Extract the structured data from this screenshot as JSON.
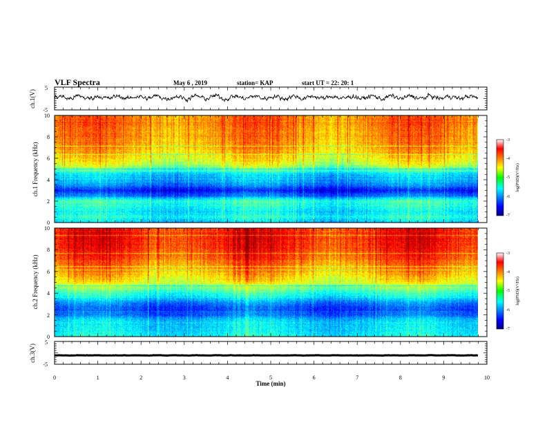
{
  "header": {
    "title": "VLF Spectra",
    "date": "May 6 , 2019",
    "station": "station= KAP",
    "start": "start UT = 22: 20: 1"
  },
  "chart_data": [
    {
      "type": "line",
      "panel": "ch1-waveform",
      "ylabel": "ch.1(V)",
      "ylim": [
        -5,
        5
      ],
      "yticks": [
        "5",
        "-5"
      ],
      "xlim": [
        0,
        10
      ],
      "series": [
        {
          "stroke": "#000000",
          "mean": 0.5,
          "amplitude": 2.2
        }
      ]
    },
    {
      "type": "heatmap",
      "panel": "ch1-spectrogram",
      "ylabel": "ch.1 Frequency (kHz)",
      "ylim": [
        0,
        10
      ],
      "yticks": [
        "0",
        "2",
        "4",
        "6",
        "8",
        "10"
      ],
      "xlim": [
        0,
        9.8
      ],
      "profile_khz": [
        0,
        0.5,
        1,
        1.5,
        2,
        2.5,
        3,
        3.5,
        4,
        4.5,
        5,
        5.5,
        6,
        7,
        8,
        9,
        10
      ],
      "profile_log_psd": [
        -5.7,
        -5.4,
        -5.6,
        -5.4,
        -5.3,
        -6.1,
        -6.5,
        -6.0,
        -5.8,
        -5.7,
        -5.1,
        -4.7,
        -4.5,
        -4.2,
        -4.1,
        -4.0,
        -4.0
      ],
      "colorbar": {
        "label": "log(PSD)(V²/Hz)",
        "range": [
          -7,
          -3
        ],
        "ticks": [
          "-3",
          "-4",
          "-5",
          "-6",
          "-7"
        ]
      }
    },
    {
      "type": "heatmap",
      "panel": "ch2-spectrogram",
      "ylabel": "ch.2 Frequency (kHz)",
      "ylim": [
        0,
        10
      ],
      "yticks": [
        "0",
        "2",
        "4",
        "6",
        "8",
        "10"
      ],
      "xlim": [
        0,
        9.8
      ],
      "profile_khz": [
        0,
        0.5,
        1,
        1.5,
        2,
        2.5,
        3,
        3.5,
        4,
        4.5,
        5,
        5.5,
        6,
        7,
        8,
        9,
        10
      ],
      "profile_log_psd": [
        -5.5,
        -5.6,
        -5.6,
        -5.7,
        -6.1,
        -6.2,
        -6.1,
        -5.6,
        -5.3,
        -5.0,
        -4.6,
        -4.4,
        -4.2,
        -3.9,
        -3.7,
        -3.6,
        -3.6
      ],
      "colorbar": {
        "label": "log(PSD)(V²/Hz)",
        "range": [
          -7,
          -3
        ],
        "ticks": [
          "-3",
          "-4",
          "-5",
          "-6",
          "-7"
        ]
      }
    },
    {
      "type": "line",
      "panel": "ch3-waveform",
      "ylabel": "ch.3(V)",
      "ylim": [
        -5,
        5
      ],
      "yticks": [
        "5",
        "-5"
      ],
      "xlim": [
        0,
        10
      ],
      "series": [
        {
          "stroke": "#000000",
          "mean": -1.1,
          "amplitude": 0.15
        }
      ]
    }
  ],
  "xaxis": {
    "label": "Time (min)",
    "ticks": [
      "0",
      "1",
      "2",
      "3",
      "4",
      "5",
      "6",
      "7",
      "8",
      "9",
      "10"
    ]
  }
}
